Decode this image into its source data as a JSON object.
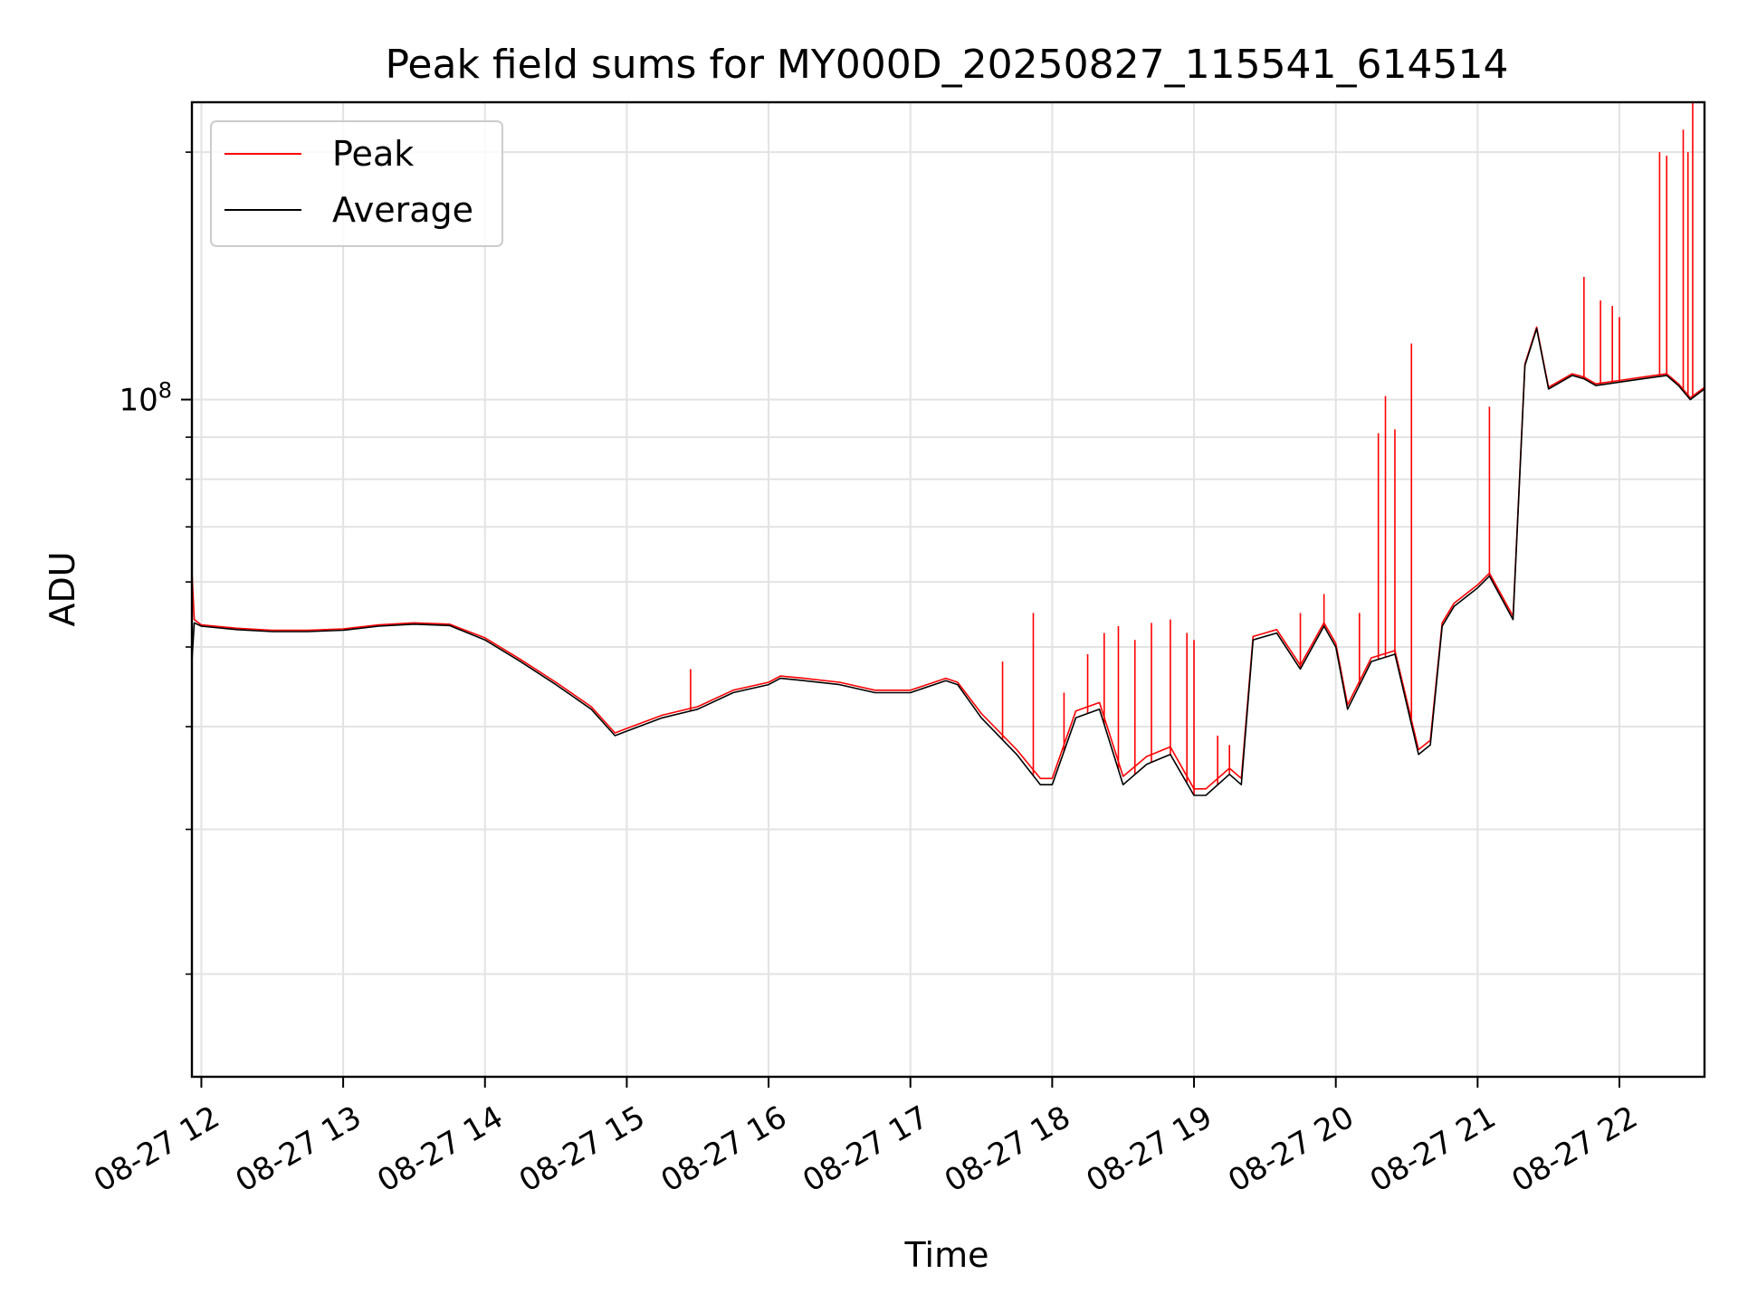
{
  "chart_data": {
    "type": "line",
    "title": "Peak field sums for MY000D_20250827_115541_614514",
    "xlabel": "Time",
    "ylabel": "ADU",
    "y_scale": "log",
    "ylim": [
      15000000,
      230000000
    ],
    "xlim": [
      "2025-08-27 11:56",
      "2025-08-27 22:36"
    ],
    "grid": true,
    "legend_position": "top-left",
    "colors": {
      "Peak": "#ff0000",
      "Average": "#000000"
    },
    "y_major_ticks": [
      {
        "value": 100000000,
        "label": "10^8"
      }
    ],
    "y_minor_ticks": [
      20000000,
      30000000,
      40000000,
      50000000,
      60000000,
      70000000,
      80000000,
      90000000,
      200000000
    ],
    "x_ticks": [
      {
        "time": "2025-08-27 12:00",
        "label": "08-27 12"
      },
      {
        "time": "2025-08-27 13:00",
        "label": "08-27 13"
      },
      {
        "time": "2025-08-27 14:00",
        "label": "08-27 14"
      },
      {
        "time": "2025-08-27 15:00",
        "label": "08-27 15"
      },
      {
        "time": "2025-08-27 16:00",
        "label": "08-27 16"
      },
      {
        "time": "2025-08-27 17:00",
        "label": "08-27 17"
      },
      {
        "time": "2025-08-27 18:00",
        "label": "08-27 18"
      },
      {
        "time": "2025-08-27 19:00",
        "label": "08-27 19"
      },
      {
        "time": "2025-08-27 20:00",
        "label": "08-27 20"
      },
      {
        "time": "2025-08-27 21:00",
        "label": "08-27 21"
      },
      {
        "time": "2025-08-27 22:00",
        "label": "08-27 22"
      }
    ],
    "series": [
      {
        "name": "Average",
        "x": [
          "11:56",
          "11:57",
          "12:00",
          "12:15",
          "12:30",
          "12:45",
          "13:00",
          "13:15",
          "13:30",
          "13:45",
          "14:00",
          "14:15",
          "14:30",
          "14:45",
          "14:55",
          "15:00",
          "15:15",
          "15:30",
          "15:45",
          "16:00",
          "16:05",
          "16:15",
          "16:30",
          "16:45",
          "17:00",
          "17:15",
          "17:20",
          "17:30",
          "17:45",
          "17:55",
          "18:00",
          "18:10",
          "18:20",
          "18:30",
          "18:40",
          "18:50",
          "19:00",
          "19:05",
          "19:15",
          "19:20",
          "19:25",
          "19:35",
          "19:45",
          "19:55",
          "20:00",
          "20:05",
          "20:15",
          "20:25",
          "20:35",
          "20:40",
          "20:45",
          "20:50",
          "21:00",
          "21:05",
          "21:15",
          "21:20",
          "21:25",
          "21:30",
          "21:40",
          "21:45",
          "21:50",
          "22:00",
          "22:10",
          "22:20",
          "22:25",
          "22:30",
          "22:36"
        ],
        "y": [
          48000000,
          53500000,
          53000000,
          52500000,
          52200000,
          52200000,
          52400000,
          53000000,
          53300000,
          53100000,
          51000000,
          48000000,
          45000000,
          42000000,
          39000000,
          39500000,
          41000000,
          42000000,
          44000000,
          45000000,
          45800000,
          45500000,
          45000000,
          44000000,
          44000000,
          45500000,
          45000000,
          41000000,
          37000000,
          34000000,
          34000000,
          41000000,
          42000000,
          34000000,
          36000000,
          37000000,
          33000000,
          33000000,
          35000000,
          34000000,
          51000000,
          52000000,
          47000000,
          53000000,
          50000000,
          42000000,
          48000000,
          49000000,
          37000000,
          38000000,
          53000000,
          56000000,
          59000000,
          61000000,
          54000000,
          110000000,
          122000000,
          103000000,
          107000000,
          106000000,
          104000000,
          105000000,
          106000000,
          107000000,
          104000000,
          100000000,
          103000000
        ]
      },
      {
        "name": "Peak",
        "x": [
          "11:56",
          "11:57",
          "12:00",
          "12:15",
          "12:30",
          "12:45",
          "13:00",
          "13:15",
          "13:30",
          "13:45",
          "14:00",
          "14:15",
          "14:30",
          "14:45",
          "14:55",
          "15:00",
          "15:15",
          "15:30",
          "15:45",
          "16:00",
          "16:05",
          "16:15",
          "16:30",
          "16:45",
          "17:00",
          "17:15",
          "17:20",
          "17:30",
          "17:45",
          "17:55",
          "18:00",
          "18:10",
          "18:20",
          "18:30",
          "18:40",
          "18:50",
          "19:00",
          "19:05",
          "19:15",
          "19:20",
          "19:25",
          "19:35",
          "19:45",
          "19:55",
          "20:00",
          "20:05",
          "20:15",
          "20:25",
          "20:35",
          "20:40",
          "20:45",
          "20:50",
          "21:00",
          "21:05",
          "21:15",
          "21:20",
          "21:25",
          "21:30",
          "21:40",
          "21:45",
          "21:50",
          "22:00",
          "22:10",
          "22:20",
          "22:25",
          "22:30",
          "22:36"
        ],
        "y": [
          62000000,
          54000000,
          53200000,
          52700000,
          52400000,
          52400000,
          52600000,
          53200000,
          53500000,
          53300000,
          51300000,
          48300000,
          45300000,
          42300000,
          39300000,
          39800000,
          41300000,
          42300000,
          44300000,
          45300000,
          46100000,
          45800000,
          45300000,
          44300000,
          44300000,
          45800000,
          45300000,
          41500000,
          37500000,
          34600000,
          34600000,
          41800000,
          42800000,
          34800000,
          36800000,
          37800000,
          33600000,
          33600000,
          35600000,
          34600000,
          51500000,
          52500000,
          47500000,
          53500000,
          50500000,
          42500000,
          48500000,
          49500000,
          37500000,
          38500000,
          53500000,
          56500000,
          59500000,
          61500000,
          54500000,
          110500000,
          122500000,
          103500000,
          107500000,
          106500000,
          104500000,
          105500000,
          106500000,
          107500000,
          104500000,
          100500000,
          103500000
        ],
        "spikes": [
          {
            "x": "15:27",
            "y": 47000000
          },
          {
            "x": "17:39",
            "y": 48000000
          },
          {
            "x": "17:52",
            "y": 55000000
          },
          {
            "x": "18:05",
            "y": 44000000
          },
          {
            "x": "18:15",
            "y": 49000000
          },
          {
            "x": "18:22",
            "y": 52000000
          },
          {
            "x": "18:28",
            "y": 53000000
          },
          {
            "x": "18:35",
            "y": 51000000
          },
          {
            "x": "18:42",
            "y": 53500000
          },
          {
            "x": "18:50",
            "y": 54000000
          },
          {
            "x": "18:57",
            "y": 52000000
          },
          {
            "x": "19:00",
            "y": 51000000
          },
          {
            "x": "19:10",
            "y": 39000000
          },
          {
            "x": "19:15",
            "y": 38000000
          },
          {
            "x": "19:45",
            "y": 55000000
          },
          {
            "x": "19:55",
            "y": 58000000
          },
          {
            "x": "20:10",
            "y": 55000000
          },
          {
            "x": "20:18",
            "y": 91000000
          },
          {
            "x": "20:21",
            "y": 101000000
          },
          {
            "x": "20:25",
            "y": 92000000
          },
          {
            "x": "20:32",
            "y": 117000000
          },
          {
            "x": "21:05",
            "y": 98000000
          },
          {
            "x": "21:45",
            "y": 141000000
          },
          {
            "x": "21:52",
            "y": 132000000
          },
          {
            "x": "21:57",
            "y": 130000000
          },
          {
            "x": "22:00",
            "y": 126000000
          },
          {
            "x": "22:17",
            "y": 200000000
          },
          {
            "x": "22:20",
            "y": 198000000
          },
          {
            "x": "22:27",
            "y": 213000000
          },
          {
            "x": "22:29",
            "y": 200000000
          },
          {
            "x": "22:31",
            "y": 230000000
          }
        ]
      }
    ]
  }
}
